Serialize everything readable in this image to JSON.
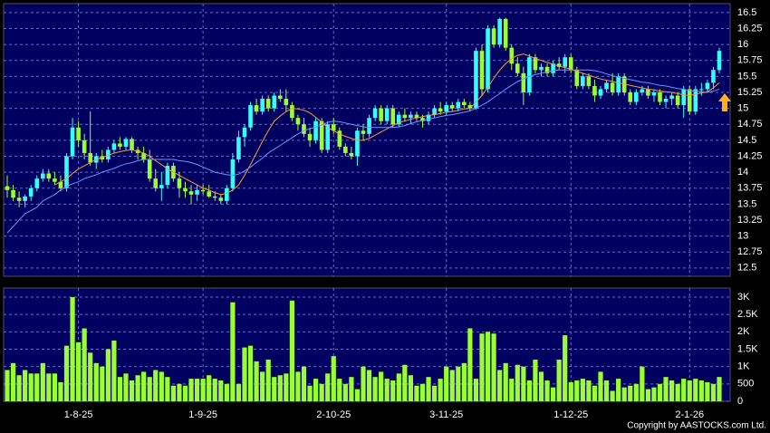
{
  "chart_data": {
    "type": "candlestick",
    "categories": [
      null,
      null,
      null,
      null,
      null,
      null,
      null,
      null,
      null,
      null,
      null,
      null,
      "1-8-25",
      null,
      null,
      null,
      null,
      null,
      null,
      null,
      null,
      null,
      null,
      null,
      null,
      null,
      null,
      null,
      null,
      null,
      null,
      null,
      null,
      "1-9-25",
      null,
      null,
      null,
      null,
      null,
      null,
      null,
      null,
      null,
      null,
      null,
      null,
      null,
      null,
      null,
      null,
      null,
      null,
      null,
      null,
      null,
      "2-10-25",
      null,
      null,
      null,
      null,
      null,
      null,
      null,
      null,
      null,
      null,
      null,
      null,
      null,
      null,
      null,
      null,
      null,
      null,
      "3-11-25",
      null,
      null,
      null,
      null,
      null,
      null,
      null,
      null,
      null,
      null,
      null,
      null,
      null,
      null,
      null,
      null,
      null,
      null,
      null,
      null,
      "1-12-25",
      null,
      null,
      null,
      null,
      null,
      null,
      null,
      null,
      null,
      null,
      null,
      null,
      null,
      null,
      null,
      null,
      null,
      null,
      null,
      "2-1-26",
      null,
      null,
      null,
      null,
      null
    ],
    "ohlc": [
      [
        13.78,
        13.95,
        13.6,
        13.72
      ],
      [
        13.72,
        13.8,
        13.55,
        13.6
      ],
      [
        13.6,
        13.7,
        13.45,
        13.55
      ],
      [
        13.55,
        13.65,
        13.45,
        13.62
      ],
      [
        13.62,
        13.8,
        13.55,
        13.75
      ],
      [
        13.75,
        13.95,
        13.7,
        13.9
      ],
      [
        13.9,
        14.05,
        13.85,
        13.98
      ],
      [
        13.98,
        14.05,
        13.85,
        13.9
      ],
      [
        13.9,
        14.0,
        13.8,
        13.85
      ],
      [
        13.85,
        13.95,
        13.7,
        13.75
      ],
      [
        13.75,
        14.3,
        13.7,
        14.25
      ],
      [
        14.25,
        14.85,
        14.2,
        14.7
      ],
      [
        14.7,
        14.8,
        14.4,
        14.5
      ],
      [
        14.5,
        14.6,
        14.2,
        14.3
      ],
      [
        14.3,
        14.95,
        14.1,
        14.15
      ],
      [
        14.15,
        14.3,
        14.05,
        14.25
      ],
      [
        14.25,
        14.35,
        14.15,
        14.2
      ],
      [
        14.2,
        14.4,
        14.15,
        14.35
      ],
      [
        14.35,
        14.5,
        14.3,
        14.45
      ],
      [
        14.45,
        14.55,
        14.35,
        14.4
      ],
      [
        14.4,
        14.55,
        14.35,
        14.52
      ],
      [
        14.52,
        14.55,
        14.3,
        14.35
      ],
      [
        14.35,
        14.4,
        14.2,
        14.3
      ],
      [
        14.3,
        14.4,
        14.15,
        14.2
      ],
      [
        14.2,
        14.35,
        13.85,
        13.9
      ],
      [
        13.9,
        14.05,
        13.7,
        13.75
      ],
      [
        13.75,
        14.0,
        13.55,
        13.8
      ],
      [
        13.8,
        14.15,
        13.75,
        14.1
      ],
      [
        14.1,
        14.15,
        13.85,
        13.9
      ],
      [
        13.9,
        14.0,
        13.6,
        13.75
      ],
      [
        13.75,
        13.85,
        13.6,
        13.7
      ],
      [
        13.7,
        13.8,
        13.5,
        13.65
      ],
      [
        13.65,
        13.8,
        13.55,
        13.72
      ],
      [
        13.72,
        13.8,
        13.65,
        13.7
      ],
      [
        13.7,
        13.8,
        13.6,
        13.62
      ],
      [
        13.62,
        13.7,
        13.55,
        13.6
      ],
      [
        13.6,
        13.65,
        13.5,
        13.55
      ],
      [
        13.55,
        13.8,
        13.5,
        13.75
      ],
      [
        13.75,
        14.3,
        13.7,
        14.2
      ],
      [
        14.2,
        14.65,
        14.15,
        14.55
      ],
      [
        14.55,
        14.75,
        14.4,
        14.7
      ],
      [
        14.7,
        15.1,
        14.65,
        15.05
      ],
      [
        15.05,
        15.15,
        14.9,
        14.95
      ],
      [
        14.95,
        15.2,
        14.9,
        15.15
      ],
      [
        15.15,
        15.2,
        14.95,
        15.0
      ],
      [
        15.0,
        15.25,
        14.95,
        15.2
      ],
      [
        15.2,
        15.3,
        15.1,
        15.15
      ],
      [
        15.15,
        15.3,
        14.95,
        15.05
      ],
      [
        15.05,
        15.1,
        14.8,
        14.85
      ],
      [
        14.85,
        14.9,
        14.65,
        14.75
      ],
      [
        14.75,
        14.85,
        14.55,
        14.6
      ],
      [
        14.6,
        14.7,
        14.4,
        14.5
      ],
      [
        14.5,
        14.85,
        14.45,
        14.8
      ],
      [
        14.8,
        14.85,
        14.3,
        14.35
      ],
      [
        14.35,
        14.8,
        14.3,
        14.75
      ],
      [
        14.75,
        14.85,
        14.6,
        14.65
      ],
      [
        14.65,
        14.7,
        14.35,
        14.4
      ],
      [
        14.4,
        14.45,
        14.25,
        14.3
      ],
      [
        14.3,
        14.4,
        14.2,
        14.25
      ],
      [
        14.25,
        14.7,
        14.1,
        14.65
      ],
      [
        14.65,
        14.75,
        14.5,
        14.6
      ],
      [
        14.6,
        14.9,
        14.55,
        14.85
      ],
      [
        14.85,
        15.05,
        14.8,
        15.0
      ],
      [
        15.0,
        15.05,
        14.75,
        14.8
      ],
      [
        14.8,
        15.05,
        14.75,
        15.0
      ],
      [
        15.0,
        15.05,
        14.7,
        14.75
      ],
      [
        14.75,
        14.95,
        14.7,
        14.9
      ],
      [
        14.9,
        15.0,
        14.8,
        14.85
      ],
      [
        14.85,
        14.95,
        14.75,
        14.9
      ],
      [
        14.9,
        14.95,
        14.8,
        14.85
      ],
      [
        14.85,
        14.9,
        14.7,
        14.8
      ],
      [
        14.8,
        14.95,
        14.75,
        14.9
      ],
      [
        14.9,
        15.05,
        14.85,
        15.0
      ],
      [
        15.0,
        15.1,
        14.9,
        14.95
      ],
      [
        14.95,
        15.1,
        14.9,
        15.05
      ],
      [
        15.05,
        15.1,
        14.95,
        15.0
      ],
      [
        15.0,
        15.15,
        14.95,
        15.1
      ],
      [
        15.1,
        15.15,
        15.0,
        15.05
      ],
      [
        15.05,
        15.1,
        14.95,
        15.0
      ],
      [
        15.0,
        15.95,
        14.98,
        15.9
      ],
      [
        15.9,
        16.0,
        15.2,
        15.3
      ],
      [
        15.3,
        16.3,
        15.25,
        16.25
      ],
      [
        16.25,
        16.3,
        15.95,
        16.0
      ],
      [
        16.0,
        16.42,
        15.95,
        16.4
      ],
      [
        16.4,
        16.42,
        15.9,
        15.95
      ],
      [
        15.95,
        16.0,
        15.6,
        15.7
      ],
      [
        15.7,
        15.8,
        15.5,
        15.55
      ],
      [
        15.55,
        15.65,
        15.05,
        15.25
      ],
      [
        15.25,
        15.85,
        15.2,
        15.8
      ],
      [
        15.8,
        15.85,
        15.55,
        15.6
      ],
      [
        15.6,
        15.7,
        15.5,
        15.65
      ],
      [
        15.65,
        15.7,
        15.5,
        15.55
      ],
      [
        15.55,
        15.75,
        15.5,
        15.7
      ],
      [
        15.7,
        15.8,
        15.6,
        15.65
      ],
      [
        15.65,
        15.85,
        15.55,
        15.8
      ],
      [
        15.8,
        15.85,
        15.55,
        15.6
      ],
      [
        15.6,
        15.65,
        15.3,
        15.35
      ],
      [
        15.35,
        15.55,
        15.3,
        15.5
      ],
      [
        15.5,
        15.55,
        15.3,
        15.35
      ],
      [
        15.35,
        15.45,
        15.1,
        15.2
      ],
      [
        15.2,
        15.35,
        15.15,
        15.3
      ],
      [
        15.3,
        15.45,
        15.25,
        15.4
      ],
      [
        15.4,
        15.55,
        15.2,
        15.25
      ],
      [
        15.25,
        15.55,
        15.2,
        15.5
      ],
      [
        15.5,
        15.55,
        15.2,
        15.25
      ],
      [
        15.25,
        15.3,
        15.05,
        15.1
      ],
      [
        15.1,
        15.3,
        15.05,
        15.25
      ],
      [
        15.25,
        15.35,
        15.2,
        15.3
      ],
      [
        15.3,
        15.35,
        15.15,
        15.2
      ],
      [
        15.2,
        15.3,
        15.1,
        15.25
      ],
      [
        15.25,
        15.3,
        15.05,
        15.1
      ],
      [
        15.1,
        15.2,
        15.0,
        15.15
      ],
      [
        15.15,
        15.25,
        15.05,
        15.2
      ],
      [
        15.2,
        15.25,
        15.0,
        15.05
      ],
      [
        15.05,
        15.35,
        14.85,
        15.3
      ],
      [
        15.3,
        15.35,
        14.9,
        14.95
      ],
      [
        14.95,
        15.35,
        14.9,
        15.3
      ],
      [
        15.3,
        15.4,
        15.2,
        15.3
      ],
      [
        15.3,
        15.45,
        15.25,
        15.4
      ],
      [
        15.4,
        15.65,
        15.3,
        15.6
      ],
      [
        15.6,
        15.95,
        15.55,
        15.9
      ]
    ],
    "up_color": "#33ffff",
    "down_color": "#99ff33",
    "ylim": [
      12.37,
      16.64
    ],
    "yticks": [
      16.5,
      16.25,
      16,
      15.75,
      15.5,
      15.25,
      15,
      14.75,
      14.5,
      14.25,
      14,
      13.75,
      13.5,
      13.25,
      13,
      12.75,
      12.5
    ],
    "grid": true,
    "lines": [
      {
        "color": "#ff9933",
        "values": [
          null,
          null,
          null,
          null,
          null,
          null,
          null,
          null,
          13.8,
          13.85,
          13.9,
          13.98,
          14.05,
          14.1,
          14.15,
          14.2,
          14.23,
          14.26,
          14.3,
          14.32,
          14.34,
          14.35,
          14.33,
          14.3,
          14.25,
          14.18,
          14.12,
          14.05,
          14.0,
          13.95,
          13.9,
          13.85,
          13.8,
          13.75,
          13.72,
          13.68,
          13.65,
          13.67,
          13.72,
          13.8,
          13.95,
          14.12,
          14.3,
          14.48,
          14.65,
          14.8,
          14.88,
          14.95,
          15.0,
          14.99,
          14.97,
          14.93,
          14.86,
          14.78,
          14.7,
          14.65,
          14.6,
          14.56,
          14.53,
          14.5,
          14.5,
          14.53,
          14.58,
          14.63,
          14.68,
          14.73,
          14.78,
          14.8,
          14.83,
          14.85,
          14.87,
          14.89,
          14.9,
          14.92,
          14.94,
          14.95,
          14.97,
          14.99,
          15.0,
          15.1,
          15.2,
          15.33,
          15.47,
          15.6,
          15.7,
          15.78,
          15.83,
          15.85,
          15.82,
          15.78,
          15.75,
          15.72,
          15.69,
          15.66,
          15.64,
          15.61,
          15.58,
          15.55,
          15.52,
          15.49,
          15.46,
          15.44,
          15.42,
          15.4,
          15.38,
          15.36,
          15.34,
          15.32,
          15.3,
          15.29,
          15.27,
          15.26,
          15.25,
          15.23,
          15.21,
          15.2,
          15.22,
          15.24,
          15.26,
          15.32,
          15.4
        ]
      },
      {
        "color": "#6699ff",
        "values": [
          13.05,
          13.15,
          13.25,
          13.35,
          13.4,
          13.45,
          13.55,
          13.6,
          13.65,
          13.72,
          13.78,
          13.82,
          13.85,
          13.9,
          13.93,
          13.96,
          14.0,
          14.03,
          14.06,
          14.1,
          14.13,
          14.15,
          14.18,
          14.2,
          14.2,
          14.2,
          14.2,
          14.2,
          14.2,
          14.18,
          14.17,
          14.15,
          14.12,
          14.08,
          14.04,
          14.0,
          13.98,
          13.96,
          13.95,
          13.97,
          14.02,
          14.08,
          14.15,
          14.22,
          14.3,
          14.36,
          14.42,
          14.48,
          14.54,
          14.6,
          14.65,
          14.68,
          14.71,
          14.74,
          14.78,
          14.8,
          14.79,
          14.77,
          14.75,
          14.73,
          14.71,
          14.7,
          14.7,
          14.7,
          14.7,
          14.7,
          14.71,
          14.73,
          14.76,
          14.79,
          14.81,
          14.83,
          14.85,
          14.87,
          14.89,
          14.9,
          14.92,
          14.94,
          14.96,
          15.0,
          15.05,
          15.1,
          15.17,
          15.23,
          15.3,
          15.36,
          15.42,
          15.46,
          15.5,
          15.53,
          15.55,
          15.57,
          15.59,
          15.6,
          15.6,
          15.6,
          15.6,
          15.6,
          15.6,
          15.59,
          15.57,
          15.54,
          15.51,
          15.49,
          15.47,
          15.45,
          15.43,
          15.41,
          15.4,
          15.38,
          15.36,
          15.35,
          15.33,
          15.31,
          15.3,
          15.28,
          15.27,
          15.26,
          15.25,
          15.27,
          15.3
        ]
      }
    ],
    "volume": {
      "type": "bar",
      "color": "#99ff33",
      "values": [
        900,
        1100,
        750,
        900,
        800,
        800,
        1100,
        800,
        800,
        550,
        1600,
        3000,
        1700,
        2100,
        1400,
        1100,
        1000,
        1500,
        1750,
        700,
        800,
        600,
        750,
        850,
        700,
        900,
        850,
        700,
        450,
        500,
        450,
        650,
        650,
        650,
        750,
        650,
        600,
        500,
        2850,
        500,
        1550,
        1600,
        1150,
        850,
        1200,
        700,
        750,
        800,
        2900,
        850,
        1000,
        450,
        650,
        500,
        800,
        1300,
        650,
        500,
        700,
        350,
        1000,
        900,
        700,
        850,
        650,
        600,
        800,
        1050,
        750,
        450,
        500,
        700,
        450,
        650,
        1000,
        900,
        1000,
        1100,
        2100,
        650,
        1950,
        2000,
        1950,
        900,
        1100,
        650,
        1050,
        1000,
        600,
        1200,
        850,
        600,
        400,
        1200,
        1900,
        550,
        600,
        650,
        600,
        450,
        850,
        600,
        300,
        650,
        400,
        450,
        500,
        1000,
        350,
        400,
        500,
        700,
        600,
        500,
        650,
        600,
        650,
        600,
        550,
        500,
        700
      ],
      "ylim": [
        0,
        3260
      ],
      "yticks": [
        {
          "value": 3000,
          "label": "3K"
        },
        {
          "value": 2500,
          "label": "2.5K"
        },
        {
          "value": 2000,
          "label": "2K"
        },
        {
          "value": 1500,
          "label": "1.5K"
        },
        {
          "value": 1000,
          "label": "1K"
        },
        500,
        0
      ]
    },
    "copyright": "Copyright by AASTOCKS.com Ltd."
  }
}
